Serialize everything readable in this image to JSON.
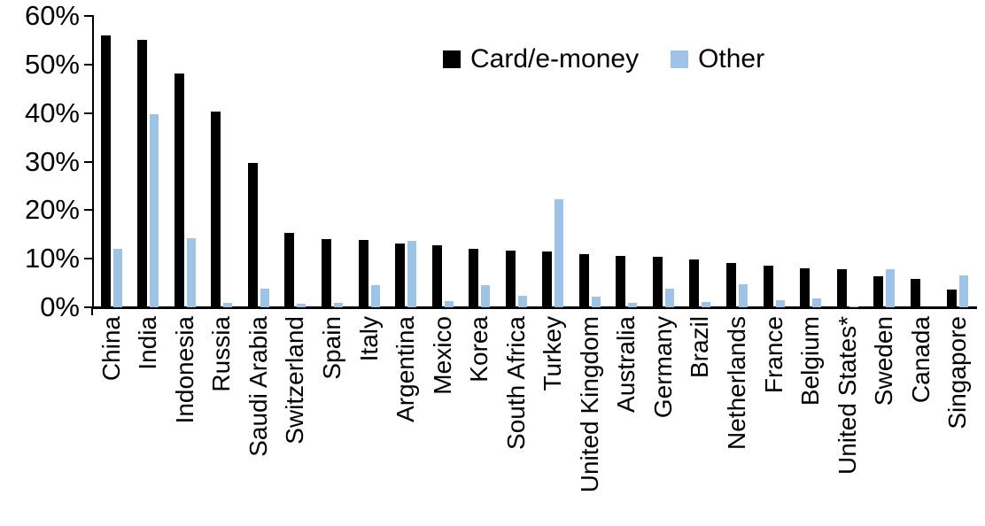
{
  "chart_data": {
    "type": "bar",
    "title": "",
    "xlabel": "",
    "ylabel": "",
    "categories": [
      "China",
      "India",
      "Indonesia",
      "Russia",
      "Saudi Arabia",
      "Switzerland",
      "Spain",
      "Italy",
      "Argentina",
      "Mexico",
      "Korea",
      "South Africa",
      "Turkey",
      "United Kingdom",
      "Australia",
      "Germany",
      "Brazil",
      "Netherlands",
      "France",
      "Belgium",
      "United States*",
      "Sweden",
      "Canada",
      "Singapore"
    ],
    "series": [
      {
        "name": "Card/e-money",
        "color": "#000000",
        "values": [
          56,
          55,
          48.2,
          40.4,
          29.8,
          15.4,
          14,
          13.9,
          13.2,
          12.7,
          12.1,
          11.7,
          11.5,
          10.9,
          10.6,
          10.4,
          9.9,
          9.2,
          8.5,
          8,
          7.8,
          6.4,
          5.8,
          3.7
        ]
      },
      {
        "name": "Other",
        "color": "#9dc3e6",
        "values": [
          12,
          39.7,
          14.3,
          0.9,
          3.8,
          0.7,
          0.9,
          4.5,
          13.7,
          1.2,
          4.5,
          2.3,
          22.3,
          2.2,
          0.9,
          3.9,
          1.1,
          4.7,
          1.4,
          1.9,
          0.2,
          7.9,
          0,
          6.5
        ]
      }
    ],
    "ylim": [
      0,
      60
    ],
    "ytick_values": [
      0,
      10,
      20,
      30,
      40,
      50,
      60
    ],
    "ytick_labels": [
      "0%",
      "10%",
      "20%",
      "30%",
      "40%",
      "50%",
      "60%"
    ],
    "grid": false,
    "legend_position": "top-center",
    "x_tick_label_rotation": 90
  }
}
